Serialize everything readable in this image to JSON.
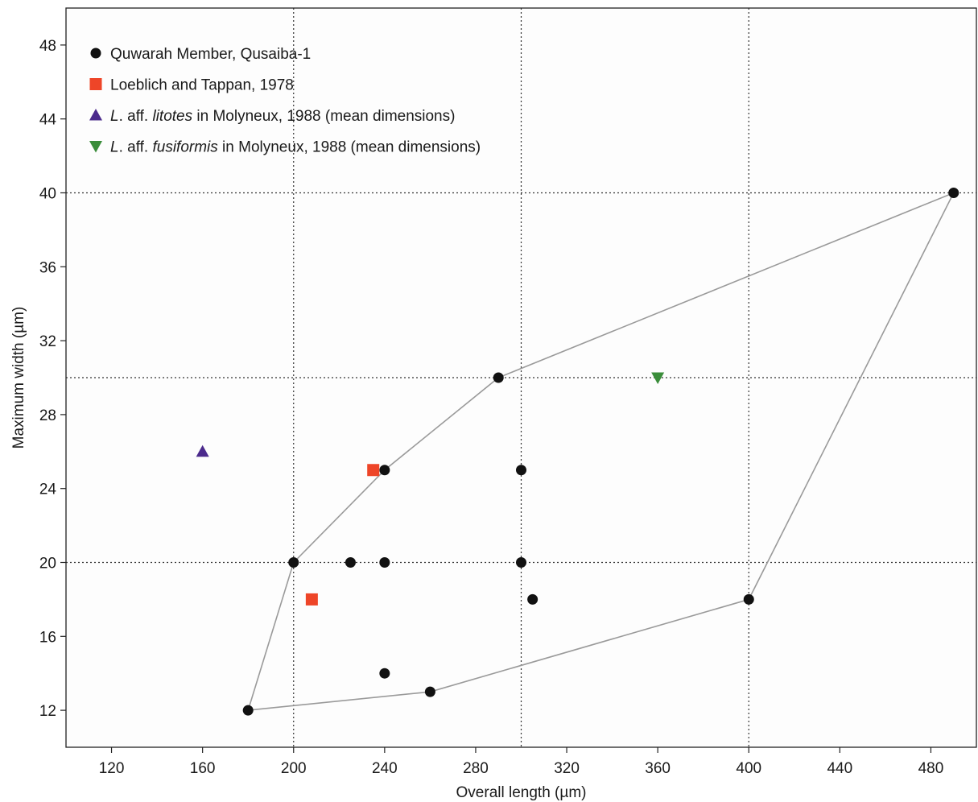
{
  "chart_data": {
    "type": "scatter",
    "xlabel": "Overall length (µm)",
    "ylabel": "Maximum width (µm)",
    "xlim": [
      100,
      500
    ],
    "ylim": [
      10,
      50
    ],
    "xticks": [
      120,
      160,
      200,
      240,
      280,
      320,
      360,
      400,
      440,
      480
    ],
    "yticks": [
      12,
      16,
      20,
      24,
      28,
      32,
      36,
      40,
      44,
      48
    ],
    "grid": {
      "style": "dotted",
      "x": [
        200,
        300,
        400
      ],
      "y": [
        20,
        30,
        40
      ]
    },
    "legend_position": "top-left",
    "series": [
      {
        "name": "Quwarah Member, Qusaiba-1",
        "marker": "circle",
        "color": "#111111",
        "points": [
          [
            180,
            12
          ],
          [
            200,
            20
          ],
          [
            225,
            20
          ],
          [
            240,
            25
          ],
          [
            240,
            20
          ],
          [
            240,
            14
          ],
          [
            260,
            13
          ],
          [
            290,
            30
          ],
          [
            300,
            25
          ],
          [
            300,
            20
          ],
          [
            305,
            18
          ],
          [
            400,
            18
          ],
          [
            490,
            40
          ]
        ]
      },
      {
        "name": "Loeblich and Tappan, 1978",
        "marker": "square",
        "color": "#ee4528",
        "points": [
          [
            208,
            18
          ],
          [
            235,
            25
          ]
        ]
      },
      {
        "name": "in Molyneux, 1988 (mean dimensions)",
        "legend_prefix": "L. aff. ",
        "legend_italic": "litotes",
        "marker": "triangle-up",
        "color": "#4b2a8c",
        "points": [
          [
            160,
            26
          ]
        ]
      },
      {
        "name": "in Molyneux, 1988 (mean dimensions)",
        "legend_prefix": "L. aff. ",
        "legend_italic": "fusiformis",
        "marker": "triangle-down",
        "color": "#3a8d3a",
        "points": [
          [
            360,
            30
          ]
        ]
      }
    ],
    "envelope": {
      "color": "#9a9a9a",
      "points": [
        [
          180,
          12
        ],
        [
          200,
          20
        ],
        [
          240,
          25
        ],
        [
          290,
          30
        ],
        [
          490,
          40
        ],
        [
          400,
          18
        ],
        [
          260,
          13
        ],
        [
          180,
          12
        ]
      ]
    }
  }
}
